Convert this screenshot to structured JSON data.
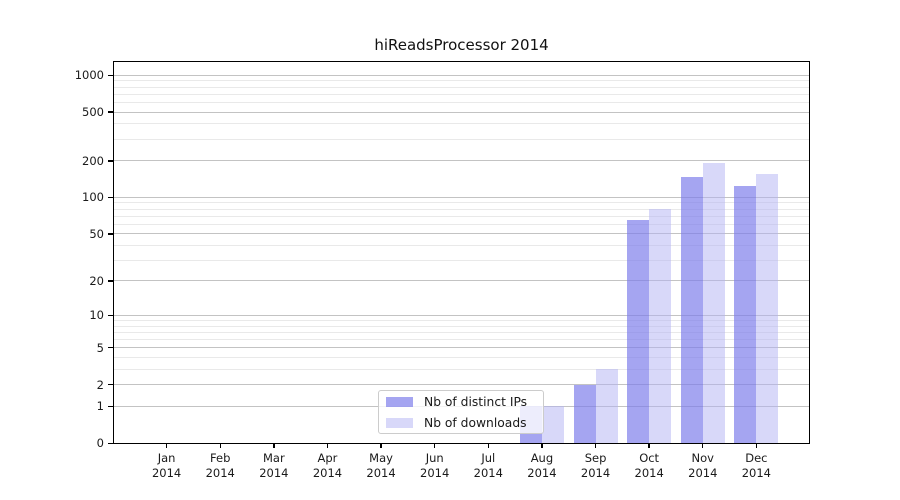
{
  "chart_data": {
    "type": "bar",
    "title": "hiReadsProcessor 2014",
    "x_categories": [
      "Jan",
      "Feb",
      "Mar",
      "Apr",
      "May",
      "Jun",
      "Jul",
      "Aug",
      "Sep",
      "Oct",
      "Nov",
      "Dec"
    ],
    "x_year_label": "2014",
    "series": [
      {
        "name": "Nb of distinct IPs",
        "color": "rgba(122,122,234,0.68)",
        "values": [
          0,
          0,
          0,
          0,
          0,
          0,
          0,
          1,
          2,
          65,
          148,
          125
        ]
      },
      {
        "name": "Nb of downloads",
        "color": "rgba(178,178,244,0.50)",
        "values": [
          0,
          0,
          0,
          0,
          0,
          0,
          0,
          1,
          3,
          80,
          190,
          155
        ]
      }
    ],
    "y_scale": "log1p",
    "y_ticks": [
      0,
      1,
      2,
      5,
      10,
      20,
      50,
      100,
      200,
      500,
      1000
    ],
    "y_minor_ticks": [
      3,
      4,
      6,
      7,
      8,
      9,
      30,
      40,
      60,
      70,
      80,
      90,
      300,
      400,
      600,
      700,
      800,
      900
    ],
    "ylim": [
      0,
      1280
    ],
    "xlabel": "",
    "ylabel": "",
    "grid": true,
    "legend_position": "inside-bottom-center",
    "colors": {
      "spine": "#000000",
      "grid_major": "#c3c3c3",
      "grid_minor": "#e9e9e9",
      "background": "#ffffff"
    }
  }
}
